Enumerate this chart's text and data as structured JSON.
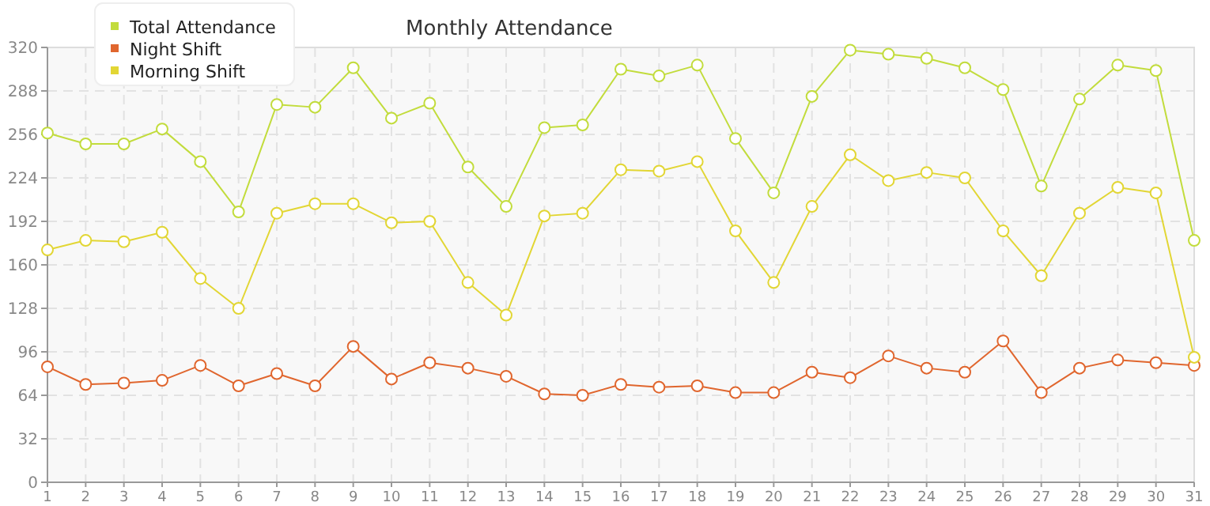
{
  "chart_data": {
    "type": "line",
    "title": "Monthly Attendance",
    "x": [
      1,
      2,
      3,
      4,
      5,
      6,
      7,
      8,
      9,
      10,
      11,
      12,
      13,
      14,
      15,
      16,
      17,
      18,
      19,
      20,
      21,
      22,
      23,
      24,
      25,
      26,
      27,
      28,
      29,
      30,
      31
    ],
    "xlim": [
      1,
      31
    ],
    "xticks": [
      1,
      2,
      3,
      4,
      5,
      6,
      7,
      8,
      9,
      10,
      11,
      12,
      13,
      14,
      15,
      16,
      17,
      18,
      19,
      20,
      21,
      22,
      23,
      24,
      25,
      26,
      27,
      28,
      29,
      30,
      31
    ],
    "ylim": [
      0,
      320
    ],
    "yticks": [
      0,
      32,
      64,
      96,
      128,
      160,
      192,
      224,
      256,
      288,
      320
    ],
    "grid": true,
    "legend": "top left",
    "marker": "circle",
    "line_style": "solid",
    "series": [
      {
        "name": "Total Attendance",
        "color": "#c2dc3c",
        "values": [
          257,
          249,
          249,
          260,
          236,
          199,
          278,
          276,
          305,
          268,
          279,
          232,
          203,
          261,
          263,
          304,
          299,
          307,
          253,
          213,
          284,
          318,
          315,
          312,
          305,
          289,
          218,
          282,
          307,
          303,
          178
        ]
      },
      {
        "name": "Night Shift",
        "color": "#e0662e",
        "values": [
          85,
          72,
          73,
          75,
          86,
          71,
          80,
          71,
          100,
          76,
          88,
          84,
          78,
          65,
          64,
          72,
          70,
          71,
          66,
          66,
          81,
          77,
          93,
          84,
          81,
          104,
          66,
          84,
          90,
          88,
          86
        ]
      },
      {
        "name": "Morning Shift",
        "color": "#e2d634",
        "values": [
          171,
          178,
          177,
          184,
          150,
          128,
          198,
          205,
          205,
          191,
          192,
          147,
          123,
          196,
          198,
          230,
          229,
          236,
          185,
          147,
          203,
          241,
          222,
          228,
          224,
          185,
          152,
          198,
          217,
          213,
          92
        ]
      }
    ]
  }
}
